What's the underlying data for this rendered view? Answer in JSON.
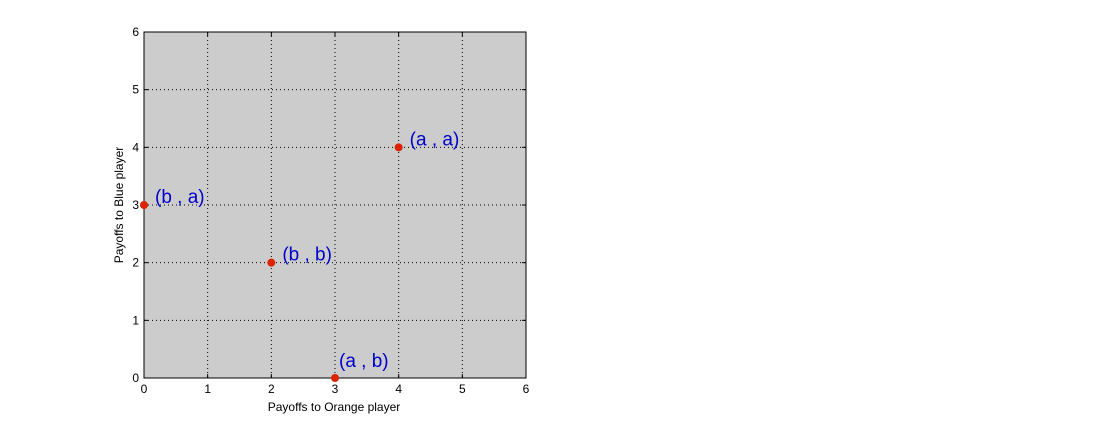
{
  "chart_data": {
    "type": "scatter",
    "xlabel": "Payoffs to Orange player",
    "ylabel": "Payoffs to Blue player",
    "xlim": [
      0,
      6
    ],
    "ylim": [
      0,
      6
    ],
    "xticks": [
      0,
      1,
      2,
      3,
      4,
      5,
      6
    ],
    "yticks": [
      0,
      1,
      2,
      3,
      4,
      5,
      6
    ],
    "grid": true,
    "plot_background": "#cccccc",
    "point_color": "#dd2200",
    "label_color": "#0000cc",
    "points": [
      {
        "x": 4,
        "y": 4,
        "label": "(a , a)"
      },
      {
        "x": 0,
        "y": 3,
        "label": "(b , a)"
      },
      {
        "x": 2,
        "y": 2,
        "label": "(b , b)"
      },
      {
        "x": 3,
        "y": 0,
        "label": "(a , b)"
      }
    ]
  }
}
